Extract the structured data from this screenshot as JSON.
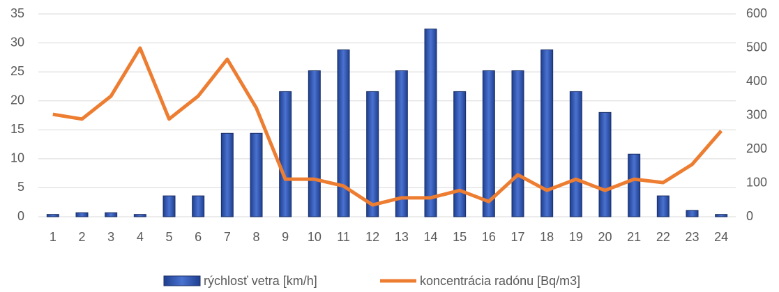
{
  "chart_data": {
    "type": "combo",
    "categories": [
      "1",
      "2",
      "3",
      "4",
      "5",
      "6",
      "7",
      "8",
      "9",
      "10",
      "11",
      "12",
      "13",
      "14",
      "15",
      "16",
      "17",
      "18",
      "19",
      "20",
      "21",
      "22",
      "23",
      "24"
    ],
    "series": [
      {
        "name": "rýchlosť vetra [km/h]",
        "type": "bar",
        "color": "#3358b8",
        "axis": "y",
        "values": [
          0.4,
          0.7,
          0.7,
          0.4,
          3.6,
          3.6,
          14.4,
          14.4,
          21.6,
          25.2,
          28.8,
          21.6,
          25.2,
          32.4,
          21.6,
          25.2,
          25.2,
          28.8,
          21.6,
          18,
          10.8,
          3.6,
          1.1,
          0.4
        ]
      },
      {
        "name": "koncentrácia radónu [Bq/m3]",
        "type": "line",
        "color": "#ed7d31",
        "axis": "y2",
        "values": [
          303,
          289,
          357,
          499,
          289,
          357,
          466,
          322,
          111,
          111,
          91,
          35,
          56,
          56,
          78,
          45,
          124,
          78,
          111,
          78,
          111,
          101,
          155,
          254
        ]
      }
    ],
    "ylim": [
      0,
      35
    ],
    "yticks": [
      0,
      5,
      10,
      15,
      20,
      25,
      30,
      35
    ],
    "y2lim": [
      0,
      600
    ],
    "y2ticks": [
      0,
      100,
      200,
      300,
      400,
      500,
      600
    ],
    "legend": "bottom"
  }
}
